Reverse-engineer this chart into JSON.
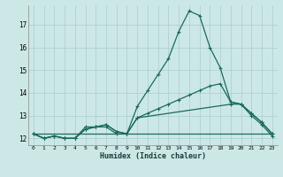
{
  "xlabel": "Humidex (Indice chaleur)",
  "ylabel": "",
  "bg_color": "#cce8e6",
  "grid_color": "#aaccca",
  "line_color": "#1a6b5a",
  "xlim": [
    -0.5,
    23.5
  ],
  "ylim": [
    11.7,
    17.85
  ],
  "xticks": [
    0,
    1,
    2,
    3,
    4,
    5,
    6,
    7,
    8,
    9,
    10,
    11,
    12,
    13,
    14,
    15,
    16,
    17,
    18,
    19,
    20,
    21,
    22,
    23
  ],
  "yticks": [
    12,
    13,
    14,
    15,
    16,
    17
  ],
  "line1_x": [
    0,
    1,
    2,
    3,
    4,
    5,
    6,
    7,
    8,
    9,
    10,
    11,
    12,
    13,
    14,
    15,
    16,
    17,
    18,
    19,
    20,
    21,
    22,
    23
  ],
  "line1_y": [
    12.2,
    12.0,
    12.1,
    12.0,
    12.0,
    12.5,
    12.5,
    12.5,
    12.2,
    12.2,
    13.4,
    14.1,
    14.8,
    15.5,
    16.7,
    17.6,
    17.4,
    16.0,
    15.1,
    13.6,
    13.5,
    13.1,
    12.7,
    12.2
  ],
  "line2_x": [
    0,
    1,
    2,
    3,
    4,
    5,
    6,
    7,
    8,
    9,
    10,
    19,
    20,
    21,
    22,
    23
  ],
  "line2_y": [
    12.2,
    12.0,
    12.1,
    12.0,
    12.0,
    12.4,
    12.5,
    12.6,
    12.3,
    12.2,
    12.9,
    13.5,
    13.5,
    13.0,
    12.6,
    12.1
  ],
  "line3_x": [
    0,
    23
  ],
  "line3_y": [
    12.2,
    12.2
  ],
  "line4_x": [
    0,
    1,
    2,
    3,
    4,
    5,
    6,
    7,
    8,
    9,
    10,
    11,
    12,
    13,
    14,
    15,
    16,
    17,
    18,
    19,
    20,
    21,
    22,
    23
  ],
  "line4_y": [
    12.2,
    12.0,
    12.1,
    12.0,
    12.0,
    12.4,
    12.5,
    12.6,
    12.3,
    12.2,
    12.9,
    13.1,
    13.3,
    13.5,
    13.7,
    13.9,
    14.1,
    14.3,
    14.4,
    13.6,
    13.5,
    13.1,
    12.7,
    12.2
  ]
}
